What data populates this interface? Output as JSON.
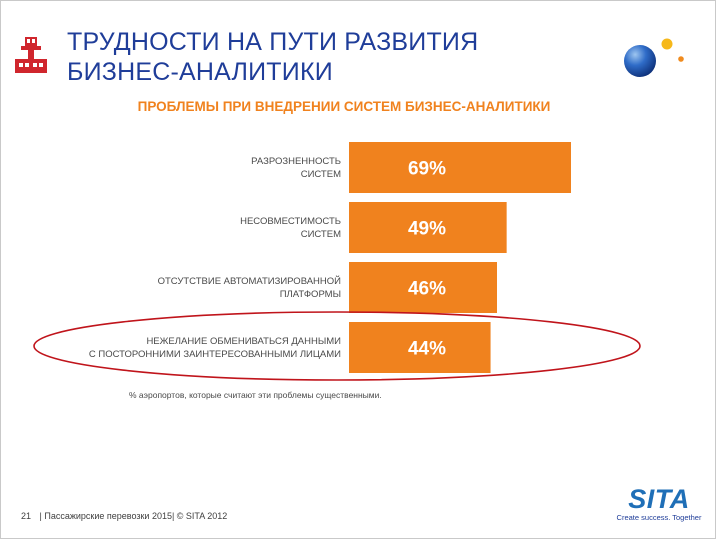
{
  "slide": {
    "title_line1": "ТРУДНОСТИ НА ПУТИ РАЗВИТИЯ",
    "title_line2": "БИЗНЕС-АНАЛИТИКИ",
    "footer_page": "21",
    "footer_text": "| Пассажирские перевозки 2015| © SITA 2012",
    "logo_text": "SITA",
    "logo_tagline": "Create success. Together",
    "colors": {
      "title": "#1f3d99",
      "bar": "#f0821e",
      "highlight_ellipse": "#c0141b",
      "logo": "#1f6fb7"
    },
    "icons": [
      "airport-tower-icon",
      "globe-icon"
    ]
  },
  "chart_data": {
    "type": "bar",
    "orientation": "horizontal",
    "title": "ПРОБЛЕМЫ ПРИ ВНЕДРЕНИИ СИСТЕМ БИЗНЕС-АНАЛИТИКИ",
    "categories": [
      [
        "РАЗРОЗНЕННОСТЬ",
        "СИСТЕМ"
      ],
      [
        "НЕСОВМЕСТИМОСТЬ",
        "СИСТЕМ"
      ],
      [
        "ОТСУТСТВИЕ АВТОМАТИЗИРОВАННОЙ",
        "ПЛАТФОРМЫ"
      ],
      [
        "НЕЖЕЛАНИЕ ОБМЕНИВАТЬСЯ ДАННЫМИ",
        "С ПОСТОРОННИМИ ЗАИНТЕРЕСОВАННЫМИ ЛИЦАМИ"
      ]
    ],
    "values": [
      69,
      49,
      46,
      44
    ],
    "value_labels": [
      "69%",
      "49%",
      "46%",
      "44%"
    ],
    "unit": "%",
    "footnote": "% аэропортов, которые считают эти проблемы существенными.",
    "highlighted_category_index": 3,
    "xlim": [
      0,
      69
    ],
    "grid": false,
    "legend": "none"
  }
}
